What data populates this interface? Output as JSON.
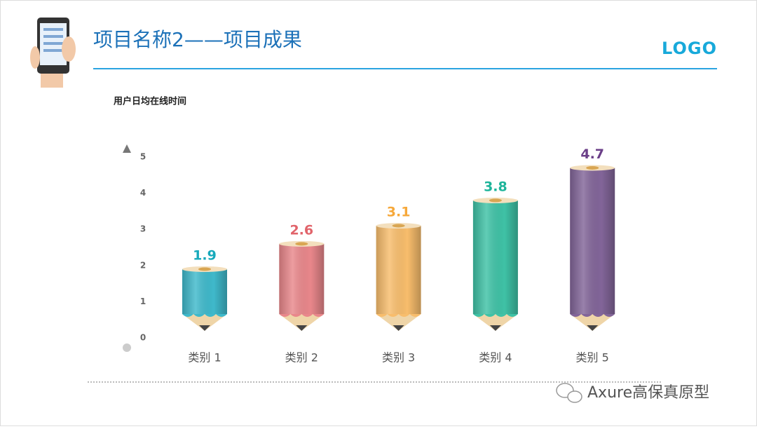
{
  "header": {
    "title": "项目名称2——项目成果",
    "logo": "LOGO"
  },
  "chart_data": {
    "type": "pencil-bar",
    "title": "用户日均在线时间",
    "categories": [
      "类别 1",
      "类别 2",
      "类别 3",
      "类别 4",
      "类别 5"
    ],
    "values": [
      1.9,
      2.6,
      3.1,
      3.8,
      4.7
    ],
    "colors": [
      "#3fb9cb",
      "#e9878b",
      "#f8bd6c",
      "#3fc2a6",
      "#826599"
    ],
    "label_colors": [
      "#17a9bb",
      "#e1646b",
      "#f6a83a",
      "#1eb49a",
      "#6b3f88"
    ],
    "ylim": [
      0,
      5
    ],
    "yticks": [
      0,
      1,
      2,
      3,
      4,
      5
    ]
  },
  "watermark": "Axure高保真原型"
}
